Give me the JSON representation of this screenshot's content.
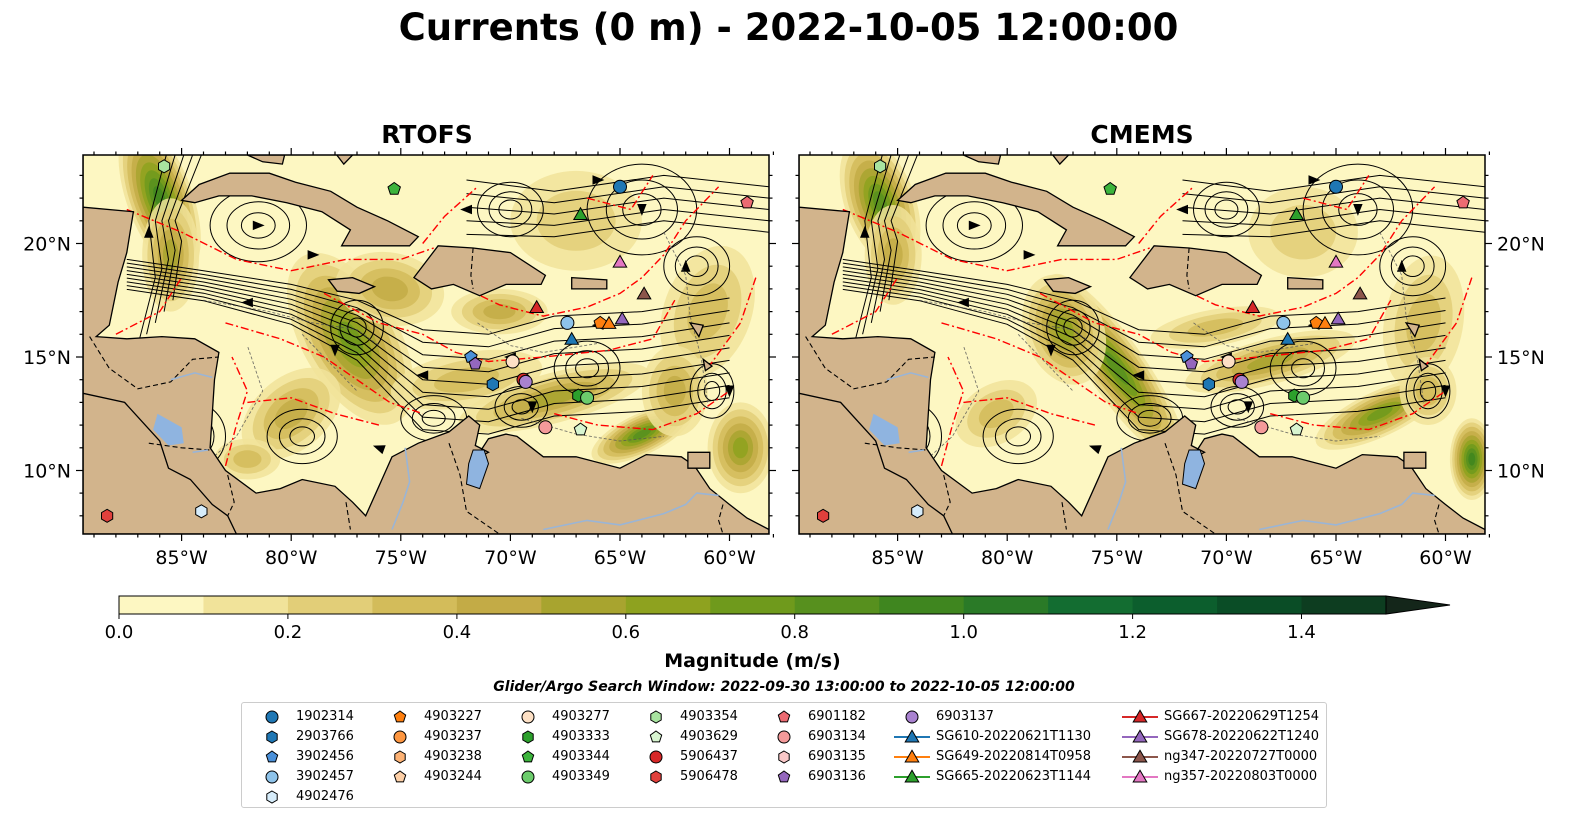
{
  "title": "Currents (0 m) - 2022-10-05 12:00:00",
  "panels": [
    {
      "title": "RTOFS"
    },
    {
      "title": "CMEMS"
    }
  ],
  "axes": {
    "lat_labels": [
      "20°N",
      "15°N",
      "10°N"
    ],
    "lat_values": [
      20,
      15,
      10
    ],
    "lon_labels": [
      "85°W",
      "80°W",
      "75°W",
      "70°W",
      "65°W",
      "60°W"
    ],
    "lon_values": [
      -85,
      -80,
      -75,
      -70,
      -65,
      -60
    ],
    "lon_range": [
      -89.5,
      -58.2
    ],
    "lat_range": [
      7.2,
      23.9
    ]
  },
  "colorbar": {
    "label": "Magnitude (m/s)",
    "ticks": [
      "0.0",
      "0.2",
      "0.4",
      "0.6",
      "0.8",
      "1.0",
      "1.2",
      "1.4"
    ],
    "tick_values": [
      0.0,
      0.2,
      0.4,
      0.6,
      0.8,
      1.0,
      1.2,
      1.4
    ],
    "range": [
      0.0,
      1.5
    ],
    "extend": "max",
    "colors": [
      "#fdf7c2",
      "#f1e39a",
      "#e2ce78",
      "#d3bc5a",
      "#c3ab46",
      "#a8a42f",
      "#8ea21f",
      "#6f9a1c",
      "#57901e",
      "#3f861f",
      "#2a7a27",
      "#136d31",
      "#0c5e2d",
      "#0a4d26",
      "#0d3d20",
      "#11301b",
      "#14261a"
    ]
  },
  "search_window": "Glider/Argo Search Window: 2022-09-30 13:00:00 to 2022-10-05 12:00:00",
  "legend": [
    {
      "label": "1902314",
      "marker": "circle",
      "color": "#1f77b4",
      "col": 0
    },
    {
      "label": "2903766",
      "marker": "hexagon",
      "color": "#1f77b4",
      "col": 0
    },
    {
      "label": "3902456",
      "marker": "pentagon",
      "color": "#4a90d9",
      "col": 0
    },
    {
      "label": "3902457",
      "marker": "circle",
      "color": "#8ec3ea",
      "col": 0
    },
    {
      "label": "4902476",
      "marker": "hexagon",
      "color": "#d6ecfa",
      "col": 0
    },
    {
      "label": "4903227",
      "marker": "pentagon",
      "color": "#ff7f0e",
      "col": 1
    },
    {
      "label": "4903237",
      "marker": "circle",
      "color": "#fd9640",
      "col": 1
    },
    {
      "label": "4903238",
      "marker": "hexagon",
      "color": "#fdb274",
      "col": 1
    },
    {
      "label": "4903244",
      "marker": "pentagon",
      "color": "#fdcfa6",
      "col": 1
    },
    {
      "label": "4903277",
      "marker": "circle",
      "color": "#fde0c5",
      "col": 2
    },
    {
      "label": "4903333",
      "marker": "hexagon",
      "color": "#2ca02c",
      "col": 2
    },
    {
      "label": "4903344",
      "marker": "pentagon",
      "color": "#3cb43c",
      "col": 2
    },
    {
      "label": "4903349",
      "marker": "circle",
      "color": "#6ccc6c",
      "col": 2
    },
    {
      "label": "4903354",
      "marker": "hexagon",
      "color": "#a8e4a0",
      "col": 3
    },
    {
      "label": "4903629",
      "marker": "pentagon",
      "color": "#d8f5d0",
      "col": 3
    },
    {
      "label": "5906437",
      "marker": "circle",
      "color": "#d62728",
      "col": 3
    },
    {
      "label": "5906478",
      "marker": "hexagon",
      "color": "#e0403c",
      "col": 3
    },
    {
      "label": "6901182",
      "marker": "pentagon",
      "color": "#ec6b72",
      "col": 4
    },
    {
      "label": "6903134",
      "marker": "circle",
      "color": "#f49a9a",
      "col": 4
    },
    {
      "label": "6903135",
      "marker": "hexagon",
      "color": "#fac8c8",
      "col": 4
    },
    {
      "label": "6903136",
      "marker": "pentagon",
      "color": "#9467bd",
      "col": 4
    },
    {
      "label": "6903137",
      "marker": "circle",
      "color": "#a982d0",
      "col": 5
    },
    {
      "label": "SG610-20220621T1130",
      "marker": "triangle-line",
      "color": "#1f77b4",
      "col": 5
    },
    {
      "label": "SG649-20220814T0958",
      "marker": "triangle-line",
      "color": "#ff7f0e",
      "col": 5
    },
    {
      "label": "SG665-20220623T1144",
      "marker": "triangle-line",
      "color": "#2ca02c",
      "col": 5
    },
    {
      "label": "SG667-20220629T1254",
      "marker": "triangle-line",
      "color": "#d62728",
      "col": 6
    },
    {
      "label": "SG678-20220622T1240",
      "marker": "triangle-line",
      "color": "#9467bd",
      "col": 6
    },
    {
      "label": "ng347-20220727T0000",
      "marker": "triangle-line",
      "color": "#8c564b",
      "col": 6
    },
    {
      "label": "ng357-20220803T0000",
      "marker": "triangle-line",
      "color": "#e377c2",
      "col": 6
    }
  ],
  "markers": [
    {
      "id": "1902314",
      "lon": -65.0,
      "lat": 22.5,
      "marker": "circle",
      "color": "#1f77b4"
    },
    {
      "id": "2903766",
      "lon": -70.8,
      "lat": 13.8,
      "marker": "hexagon",
      "color": "#1f77b4"
    },
    {
      "id": "3902456",
      "lon": -71.8,
      "lat": 15.0,
      "marker": "pentagon",
      "color": "#4a90d9"
    },
    {
      "id": "3902457",
      "lon": -67.4,
      "lat": 16.5,
      "marker": "circle",
      "color": "#8ec3ea"
    },
    {
      "id": "4902476",
      "lon": -84.1,
      "lat": 8.2,
      "marker": "hexagon",
      "color": "#d6ecfa"
    },
    {
      "id": "4903227",
      "lon": -65.9,
      "lat": 16.5,
      "marker": "pentagon",
      "color": "#ff7f0e"
    },
    {
      "id": "4903277",
      "lon": -69.9,
      "lat": 14.8,
      "marker": "circle",
      "color": "#fde0c5"
    },
    {
      "id": "4903333",
      "lon": -66.9,
      "lat": 13.3,
      "marker": "hexagon",
      "color": "#2ca02c"
    },
    {
      "id": "4903344",
      "lon": -75.3,
      "lat": 22.4,
      "marker": "pentagon",
      "color": "#3cb43c"
    },
    {
      "id": "4903349",
      "lon": -66.5,
      "lat": 13.2,
      "marker": "circle",
      "color": "#6ccc6c"
    },
    {
      "id": "4903354",
      "lon": -85.8,
      "lat": 23.4,
      "marker": "hexagon",
      "color": "#a8e4a0"
    },
    {
      "id": "4903629",
      "lon": -66.8,
      "lat": 11.8,
      "marker": "pentagon",
      "color": "#d8f5d0"
    },
    {
      "id": "5906437",
      "lon": -69.4,
      "lat": 14.0,
      "marker": "circle",
      "color": "#d62728"
    },
    {
      "id": "5906478",
      "lon": -88.4,
      "lat": 8.0,
      "marker": "hexagon",
      "color": "#e0403c"
    },
    {
      "id": "6901182",
      "lon": -59.2,
      "lat": 21.8,
      "marker": "pentagon",
      "color": "#ec6b72"
    },
    {
      "id": "6903134",
      "lon": -68.4,
      "lat": 11.9,
      "marker": "circle",
      "color": "#f49a9a"
    },
    {
      "id": "6903136",
      "lon": -71.6,
      "lat": 14.7,
      "marker": "pentagon",
      "color": "#9467bd"
    },
    {
      "id": "6903137",
      "lon": -69.3,
      "lat": 13.9,
      "marker": "circle",
      "color": "#a982d0"
    },
    {
      "id": "SG610-20220621T1130",
      "lon": -67.2,
      "lat": 15.8,
      "marker": "triangle",
      "color": "#1f77b4"
    },
    {
      "id": "SG649-20220814T0958",
      "lon": -65.5,
      "lat": 16.5,
      "marker": "triangle",
      "color": "#ff7f0e"
    },
    {
      "id": "SG665-20220623T1144",
      "lon": -66.8,
      "lat": 21.3,
      "marker": "triangle",
      "color": "#2ca02c"
    },
    {
      "id": "SG667-20220629T1254",
      "lon": -68.8,
      "lat": 17.2,
      "marker": "triangle",
      "color": "#d62728"
    },
    {
      "id": "SG678-20220622T1240",
      "lon": -64.9,
      "lat": 16.7,
      "marker": "triangle",
      "color": "#9467bd"
    },
    {
      "id": "ng347-20220727T0000",
      "lon": -63.9,
      "lat": 17.8,
      "marker": "triangle",
      "color": "#8c564b"
    },
    {
      "id": "ng357-20220803T0000",
      "lon": -65.0,
      "lat": 19.2,
      "marker": "triangle",
      "color": "#e377c2"
    }
  ],
  "style": {
    "land": "#d2b48c",
    "water_inland": "#8fb4e0",
    "eez": "#ff0000",
    "ocean_low": "#fdf7c2"
  }
}
